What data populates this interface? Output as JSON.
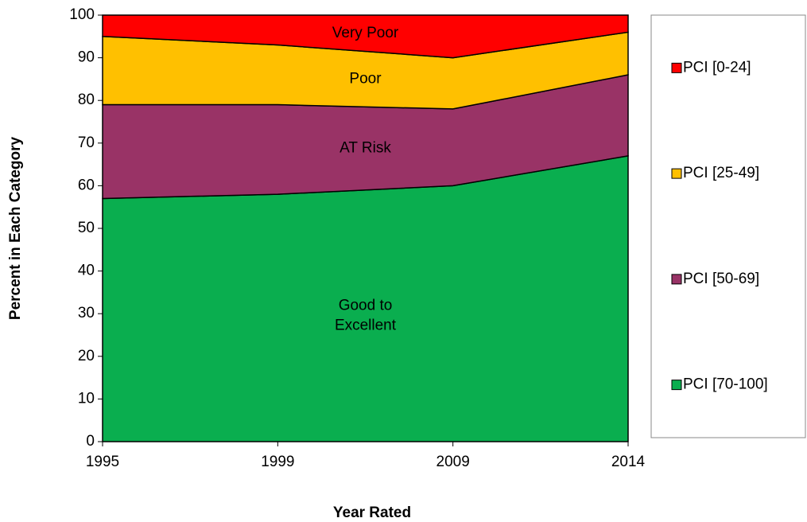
{
  "chart_data": {
    "type": "stacked_area",
    "x_label": "Year Rated",
    "y_label": "Percent in Each Category",
    "categories": [
      "1995",
      "1999",
      "2009",
      "2014"
    ],
    "ylim": [
      0,
      100
    ],
    "yticks": [
      0,
      10,
      20,
      30,
      40,
      50,
      60,
      70,
      80,
      90,
      100
    ],
    "grid": false,
    "legend": "right",
    "series": [
      {
        "name": "PCI [70-100]",
        "color": "#0aae4f",
        "label": [
          "Good to",
          "Excellent"
        ],
        "values": [
          57,
          58,
          60,
          67
        ]
      },
      {
        "name": "PCI [50-69]",
        "color": "#993366",
        "label": [
          "AT Risk"
        ],
        "values": [
          22,
          21,
          18,
          19
        ]
      },
      {
        "name": "PCI [25-49]",
        "color": "#ffc000",
        "label": [
          "Poor"
        ],
        "values": [
          16,
          14,
          12,
          10
        ]
      },
      {
        "name": "PCI [0-24]",
        "color": "#ff0000",
        "label": [
          "Very Poor"
        ],
        "values": [
          5,
          7,
          10,
          4
        ]
      }
    ]
  }
}
